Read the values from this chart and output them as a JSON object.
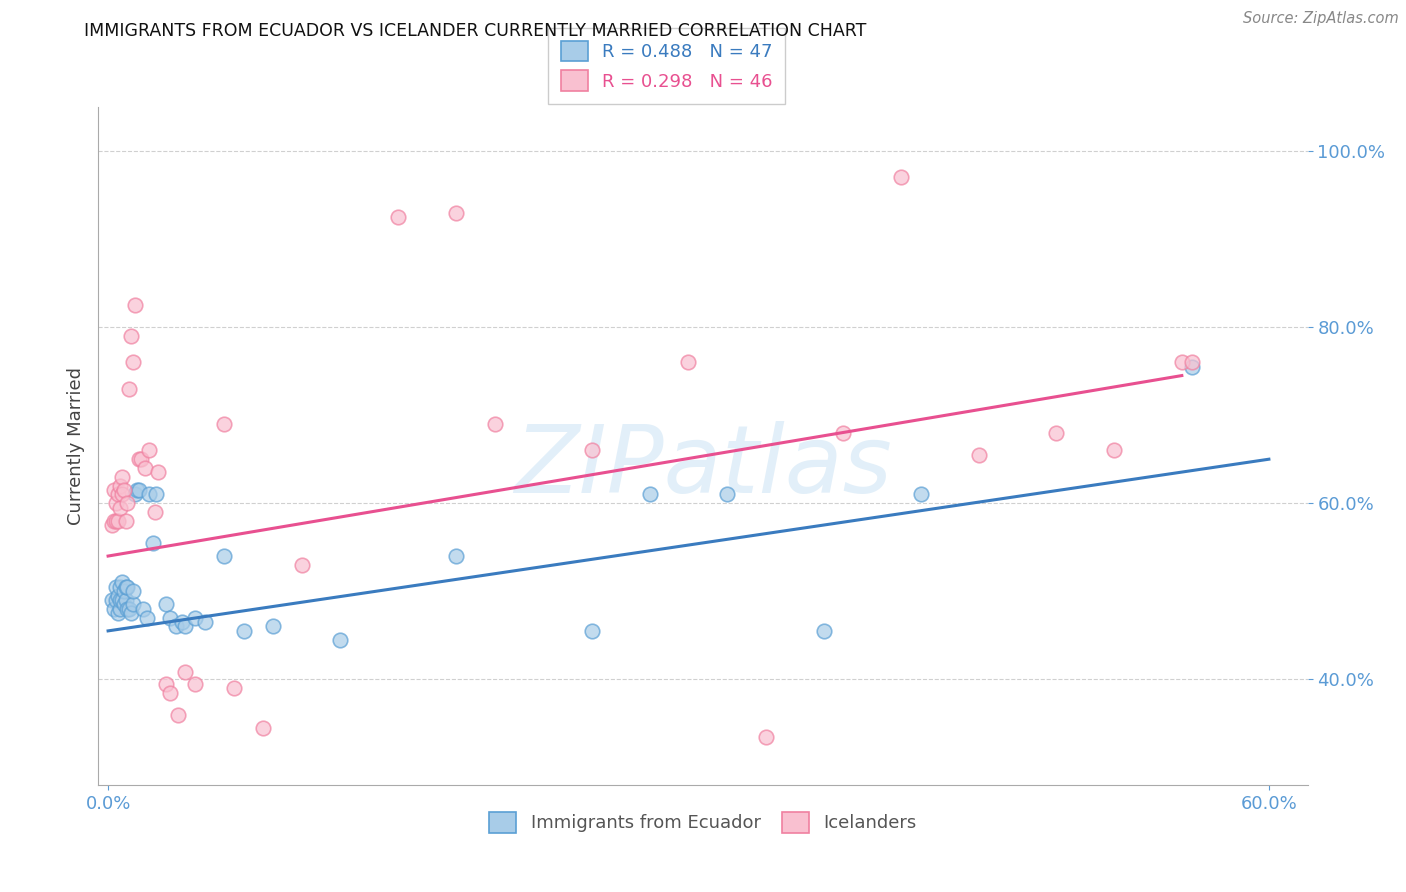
{
  "title": "IMMIGRANTS FROM ECUADOR VS ICELANDER CURRENTLY MARRIED CORRELATION CHART",
  "source": "Source: ZipAtlas.com",
  "xlim": [
    -0.005,
    0.62
  ],
  "ylim": [
    0.28,
    1.05
  ],
  "ylabel": "Currently Married",
  "legend_entry1": "R = 0.488   N = 47",
  "legend_entry2": "R = 0.298   N = 46",
  "legend_label1": "Immigrants from Ecuador",
  "legend_label2": "Icelanders",
  "blue_color": "#a8cce8",
  "pink_color": "#f9c0d0",
  "blue_edge_color": "#5a9fd4",
  "pink_edge_color": "#f080a0",
  "blue_line_color": "#3a7bbf",
  "pink_line_color": "#e85090",
  "title_color": "#222222",
  "axis_tick_color": "#5b9bd5",
  "watermark": "ZIPatlas",
  "blue_x": [
    0.002,
    0.003,
    0.004,
    0.004,
    0.005,
    0.005,
    0.006,
    0.006,
    0.006,
    0.007,
    0.007,
    0.008,
    0.008,
    0.009,
    0.009,
    0.01,
    0.01,
    0.011,
    0.012,
    0.013,
    0.013,
    0.014,
    0.015,
    0.016,
    0.018,
    0.02,
    0.021,
    0.023,
    0.025,
    0.03,
    0.032,
    0.035,
    0.038,
    0.04,
    0.045,
    0.05,
    0.06,
    0.07,
    0.085,
    0.12,
    0.18,
    0.25,
    0.28,
    0.32,
    0.37,
    0.42,
    0.56
  ],
  "blue_y": [
    0.49,
    0.48,
    0.49,
    0.505,
    0.475,
    0.495,
    0.48,
    0.49,
    0.505,
    0.49,
    0.51,
    0.485,
    0.5,
    0.49,
    0.505,
    0.48,
    0.505,
    0.48,
    0.475,
    0.485,
    0.5,
    0.61,
    0.615,
    0.615,
    0.48,
    0.47,
    0.61,
    0.555,
    0.61,
    0.485,
    0.47,
    0.46,
    0.465,
    0.46,
    0.47,
    0.465,
    0.54,
    0.455,
    0.46,
    0.445,
    0.54,
    0.455,
    0.61,
    0.61,
    0.455,
    0.61,
    0.755
  ],
  "pink_x": [
    0.002,
    0.003,
    0.003,
    0.004,
    0.004,
    0.005,
    0.005,
    0.006,
    0.006,
    0.007,
    0.007,
    0.008,
    0.009,
    0.01,
    0.011,
    0.012,
    0.013,
    0.014,
    0.016,
    0.017,
    0.019,
    0.021,
    0.024,
    0.026,
    0.03,
    0.032,
    0.036,
    0.04,
    0.045,
    0.06,
    0.065,
    0.08,
    0.1,
    0.15,
    0.18,
    0.2,
    0.25,
    0.3,
    0.34,
    0.38,
    0.41,
    0.45,
    0.49,
    0.52,
    0.555,
    0.56
  ],
  "pink_y": [
    0.575,
    0.58,
    0.615,
    0.58,
    0.6,
    0.58,
    0.61,
    0.595,
    0.62,
    0.61,
    0.63,
    0.615,
    0.58,
    0.6,
    0.73,
    0.79,
    0.76,
    0.825,
    0.65,
    0.65,
    0.64,
    0.66,
    0.59,
    0.635,
    0.395,
    0.385,
    0.36,
    0.408,
    0.395,
    0.69,
    0.39,
    0.345,
    0.53,
    0.925,
    0.93,
    0.69,
    0.66,
    0.76,
    0.335,
    0.68,
    0.97,
    0.655,
    0.68,
    0.66,
    0.76,
    0.76
  ],
  "blue_trend_x0": 0.0,
  "blue_trend_x1": 0.6,
  "blue_trend_y0": 0.455,
  "blue_trend_y1": 0.65,
  "pink_trend_x0": 0.0,
  "pink_trend_x1": 0.555,
  "pink_trend_y0": 0.54,
  "pink_trend_y1": 0.745,
  "ytick_vals": [
    0.4,
    0.6,
    0.8,
    1.0
  ],
  "ytick_labels": [
    "40.0%",
    "60.0%",
    "80.0%",
    "100.0%"
  ],
  "xtick_vals": [
    0.0,
    0.6
  ],
  "xtick_labels": [
    "0.0%",
    "60.0%"
  ],
  "marker_size": 110,
  "marker_linewidth": 1.2,
  "grid_color": "#d0d0d0",
  "background_color": "#ffffff"
}
